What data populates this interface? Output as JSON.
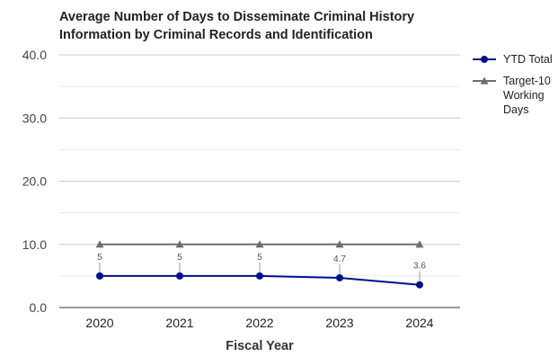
{
  "chart_data": {
    "type": "line",
    "title": "Average Number of Days to Disseminate Criminal History\nInformation by Criminal Records and Identification",
    "xlabel": "Fiscal Year",
    "ylabel": "",
    "categories": [
      "2020",
      "2021",
      "2022",
      "2023",
      "2024"
    ],
    "ylim": [
      0,
      40
    ],
    "yticks": [
      "0.0",
      "10.0",
      "20.0",
      "30.0",
      "40.0"
    ],
    "grid": true,
    "legend_position": "right",
    "series": [
      {
        "name": "YTD Total",
        "values": [
          5,
          5,
          5,
          4.7,
          3.6
        ],
        "labels": [
          "5",
          "5",
          "5",
          "4.7",
          "3.6"
        ],
        "color": "#000f8f",
        "marker": "circle"
      },
      {
        "name": "Target-10 Working Days",
        "legend_lines": [
          "Target-10",
          "Working",
          "Days"
        ],
        "values": [
          10,
          10,
          10,
          10,
          10
        ],
        "color": "#6e6e6e",
        "marker": "triangle"
      }
    ]
  }
}
